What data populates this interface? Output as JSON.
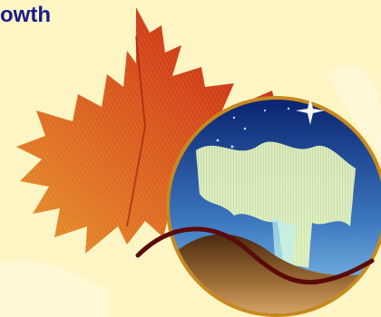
{
  "slide": {
    "title": "owth"
  },
  "colors": {
    "background": "#fdf5c4",
    "title_text": "#1a1a8c",
    "maple_leaf_light": "#e8952c",
    "maple_leaf_dark": "#c41a10",
    "globe_rim": "#c8881e",
    "sky_top": "#0a2a7a",
    "sky_bottom": "#7ab8e8",
    "aurora": "#d9f2a8",
    "hill": "#8a5a2a",
    "curve": "#5a0a0a"
  },
  "icons": {
    "maple_leaf": "maple-leaf-icon",
    "aurora_globe": "aurora-globe-icon",
    "sparkle": "sparkle-star-icon"
  }
}
